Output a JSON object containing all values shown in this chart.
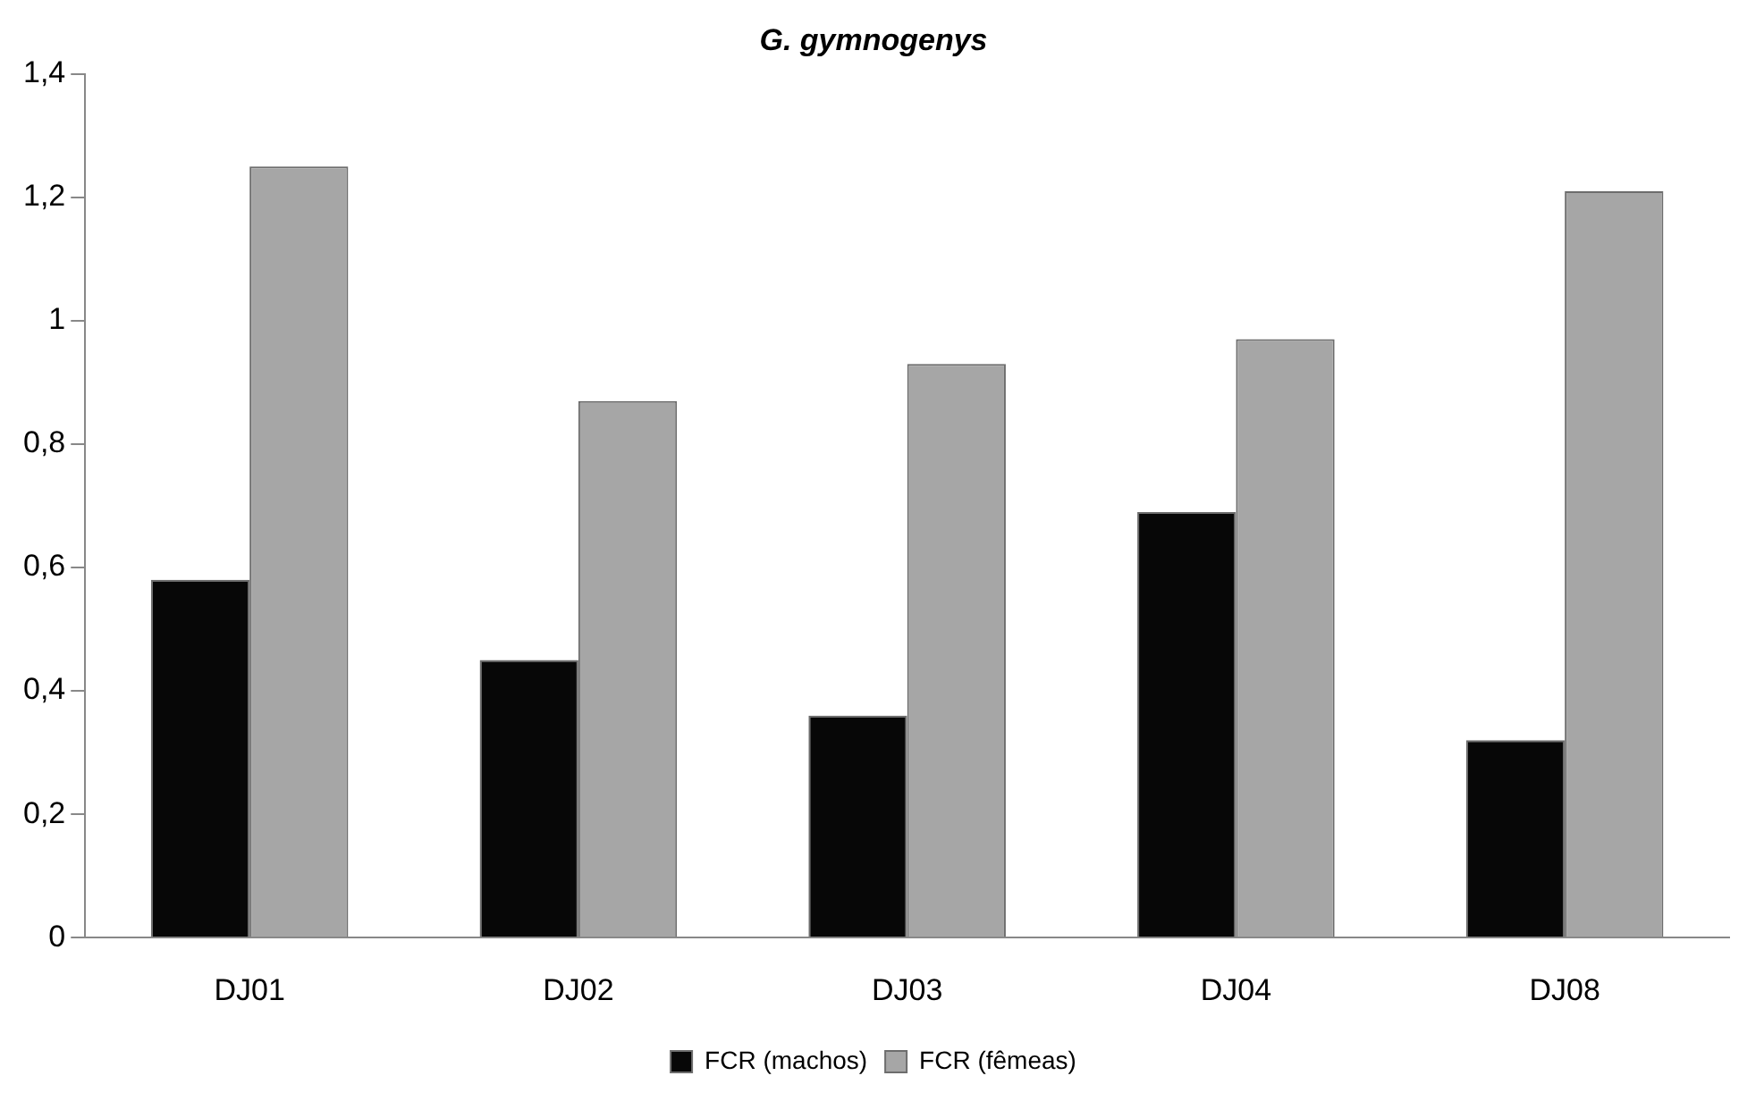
{
  "chart_data": {
    "type": "bar",
    "title": "G. gymnogenys",
    "categories": [
      "DJ01",
      "DJ02",
      "DJ03",
      "DJ04",
      "DJ08"
    ],
    "series": [
      {
        "name": "FCR (machos)",
        "color": "#070707",
        "values": [
          0.58,
          0.45,
          0.36,
          0.69,
          0.32
        ]
      },
      {
        "name": "FCR (fêmeas)",
        "color": "#a6a6a6",
        "values": [
          1.25,
          0.87,
          0.93,
          0.97,
          1.21
        ]
      }
    ],
    "ylim": [
      0,
      1.4
    ],
    "yticks": [
      {
        "value": 0,
        "label": "0"
      },
      {
        "value": 0.2,
        "label": "0,2"
      },
      {
        "value": 0.4,
        "label": "0,4"
      },
      {
        "value": 0.6,
        "label": "0,6"
      },
      {
        "value": 0.8,
        "label": "0,8"
      },
      {
        "value": 1,
        "label": "1"
      },
      {
        "value": 1.2,
        "label": "1,2"
      },
      {
        "value": 1.4,
        "label": "1,4"
      }
    ],
    "grid": false,
    "legend": "bottom"
  }
}
